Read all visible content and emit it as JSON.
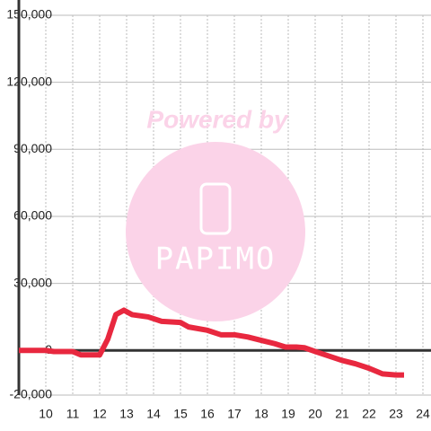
{
  "chart_data": {
    "type": "line",
    "x": [
      9,
      10,
      10.3,
      11,
      11.3,
      12,
      12.3,
      12.6,
      12.9,
      13.2,
      13.8,
      14.3,
      15,
      15.3,
      16,
      16.5,
      17,
      17.5,
      18,
      18.5,
      18.9,
      19.3,
      19.6,
      20,
      20.5,
      21,
      21.5,
      22,
      22.5,
      23,
      23.3
    ],
    "series": [
      {
        "color": "#e8283f",
        "values": [
          0,
          0,
          -500,
          -500,
          -2000,
          -2000,
          5000,
          16000,
          18000,
          16000,
          15000,
          13000,
          12500,
          10500,
          9000,
          7000,
          7000,
          6000,
          4500,
          3000,
          1500,
          1500,
          1200,
          -500,
          -2500,
          -4500,
          -6000,
          -8000,
          -10500,
          -11000,
          -11000
        ]
      }
    ],
    "xlim": [
      9,
      24.3
    ],
    "xticks": [
      10,
      11,
      12,
      13,
      14,
      15,
      16,
      17,
      18,
      19,
      20,
      21,
      22,
      23,
      24
    ],
    "ylim": [
      -20000,
      150000
    ],
    "yticks": [
      {
        "value": -20000,
        "label": "-20,000"
      },
      0,
      {
        "value": 30000,
        "label": "30,000"
      },
      {
        "value": 60000,
        "label": "60,000"
      },
      {
        "value": 90000,
        "label": "90,000"
      },
      {
        "value": 120000,
        "label": "120,000"
      },
      {
        "value": 150000,
        "label": "150,000"
      }
    ],
    "grid": true,
    "watermark": {
      "text": "Powered by",
      "logo": "PAPIMO"
    }
  }
}
